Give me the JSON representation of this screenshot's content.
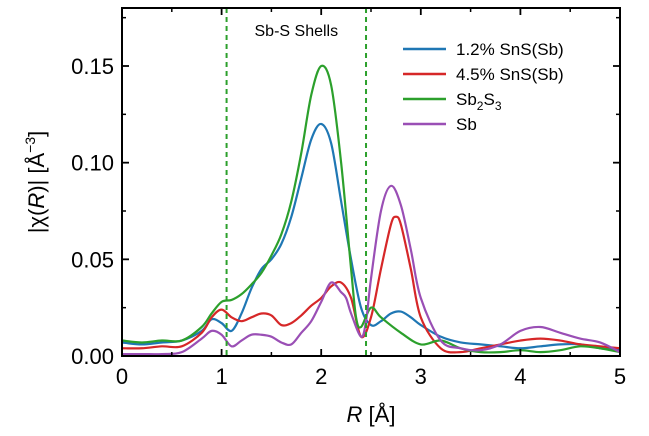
{
  "chart_data": {
    "type": "line",
    "xlabel": {
      "italic": "R",
      "rest": " [Å]"
    },
    "ylabel": {
      "pre": "|χ(",
      "italic": "R",
      "post": ")| [Å",
      "sup": "−3",
      "close": "]"
    },
    "xlim": [
      0,
      5
    ],
    "ylim": [
      0,
      0.18
    ],
    "xticks": [
      "0",
      "1",
      "2",
      "3",
      "4",
      "5"
    ],
    "yticks": [
      "0.00",
      "0.05",
      "0.10",
      "0.15"
    ],
    "xtick_values": [
      0,
      1,
      2,
      3,
      4,
      5
    ],
    "ytick_values": [
      0,
      0.05,
      0.1,
      0.15
    ],
    "grid": false,
    "legend_position": "top-right",
    "annotation": {
      "text": "Sb-S Shells",
      "shell_bounds": [
        1.05,
        2.45
      ],
      "line_color": "#2ca02c"
    },
    "series": [
      {
        "name": "1.2% SnS(Sb)",
        "legend": {
          "main": "1.2% SnS(Sb)"
        },
        "color": "#1f77b4",
        "x": [
          0,
          0.2,
          0.4,
          0.6,
          0.8,
          0.9,
          1.0,
          1.1,
          1.2,
          1.3,
          1.4,
          1.5,
          1.6,
          1.7,
          1.8,
          1.9,
          2.0,
          2.1,
          2.2,
          2.3,
          2.4,
          2.5,
          2.6,
          2.7,
          2.8,
          2.9,
          3.0,
          3.2,
          3.4,
          3.6,
          3.8,
          4.0,
          4.2,
          4.4,
          4.6,
          4.8,
          5.0
        ],
        "y": [
          0.007,
          0.006,
          0.007,
          0.008,
          0.013,
          0.019,
          0.017,
          0.013,
          0.022,
          0.035,
          0.045,
          0.05,
          0.058,
          0.072,
          0.092,
          0.112,
          0.12,
          0.11,
          0.08,
          0.05,
          0.025,
          0.016,
          0.018,
          0.022,
          0.023,
          0.02,
          0.016,
          0.01,
          0.007,
          0.006,
          0.005,
          0.004,
          0.005,
          0.006,
          0.006,
          0.004,
          0.003
        ]
      },
      {
        "name": "4.5% SnS(Sb)",
        "legend": {
          "main": "4.5% SnS(Sb)"
        },
        "color": "#d62728",
        "x": [
          0,
          0.2,
          0.4,
          0.6,
          0.8,
          0.9,
          1.0,
          1.1,
          1.2,
          1.3,
          1.4,
          1.5,
          1.6,
          1.7,
          1.8,
          1.9,
          2.0,
          2.1,
          2.2,
          2.3,
          2.4,
          2.5,
          2.6,
          2.7,
          2.75,
          2.8,
          2.9,
          3.0,
          3.2,
          3.4,
          3.6,
          3.8,
          4.0,
          4.2,
          4.4,
          4.6,
          4.8,
          5.0
        ],
        "y": [
          0.004,
          0.004,
          0.005,
          0.005,
          0.012,
          0.02,
          0.024,
          0.02,
          0.018,
          0.02,
          0.022,
          0.021,
          0.016,
          0.017,
          0.021,
          0.026,
          0.03,
          0.036,
          0.038,
          0.03,
          0.01,
          0.02,
          0.045,
          0.068,
          0.072,
          0.068,
          0.045,
          0.02,
          0.004,
          0.002,
          0.004,
          0.006,
          0.008,
          0.009,
          0.008,
          0.006,
          0.005,
          0.004
        ]
      },
      {
        "name": "Sb2S3",
        "legend": {
          "main": "Sb",
          "sub1": "2",
          "mid": "S",
          "sub2": "3"
        },
        "color": "#2ca02c",
        "x": [
          0,
          0.2,
          0.4,
          0.6,
          0.8,
          0.9,
          1.0,
          1.1,
          1.2,
          1.3,
          1.4,
          1.5,
          1.6,
          1.7,
          1.8,
          1.9,
          2.0,
          2.1,
          2.2,
          2.3,
          2.35,
          2.4,
          2.5,
          2.6,
          2.8,
          3.0,
          3.2,
          3.4,
          3.6,
          3.8,
          4.0,
          4.2,
          4.4,
          4.6,
          4.8,
          5.0
        ],
        "y": [
          0.008,
          0.007,
          0.008,
          0.008,
          0.015,
          0.022,
          0.028,
          0.029,
          0.032,
          0.037,
          0.043,
          0.052,
          0.063,
          0.08,
          0.105,
          0.135,
          0.15,
          0.14,
          0.1,
          0.045,
          0.02,
          0.015,
          0.025,
          0.02,
          0.012,
          0.006,
          0.008,
          0.004,
          0.002,
          0.002,
          0.003,
          0.002,
          0.003,
          0.005,
          0.004,
          0.002
        ]
      },
      {
        "name": "Sb",
        "legend": {
          "main": "Sb"
        },
        "color": "#9a4fb5",
        "x": [
          0,
          0.2,
          0.4,
          0.6,
          0.8,
          0.9,
          1.0,
          1.1,
          1.2,
          1.3,
          1.4,
          1.5,
          1.6,
          1.7,
          1.8,
          1.9,
          2.0,
          2.1,
          2.2,
          2.25,
          2.3,
          2.4,
          2.45,
          2.5,
          2.6,
          2.7,
          2.8,
          2.9,
          3.0,
          3.2,
          3.4,
          3.6,
          3.8,
          4.0,
          4.2,
          4.4,
          4.6,
          4.8,
          5.0
        ],
        "y": [
          0.001,
          0.001,
          0.001,
          0.002,
          0.009,
          0.013,
          0.011,
          0.005,
          0.008,
          0.011,
          0.011,
          0.01,
          0.007,
          0.006,
          0.012,
          0.018,
          0.028,
          0.038,
          0.033,
          0.03,
          0.022,
          0.01,
          0.018,
          0.04,
          0.075,
          0.088,
          0.078,
          0.055,
          0.03,
          0.008,
          0.004,
          0.003,
          0.006,
          0.013,
          0.015,
          0.012,
          0.009,
          0.007,
          0.002
        ]
      }
    ]
  }
}
